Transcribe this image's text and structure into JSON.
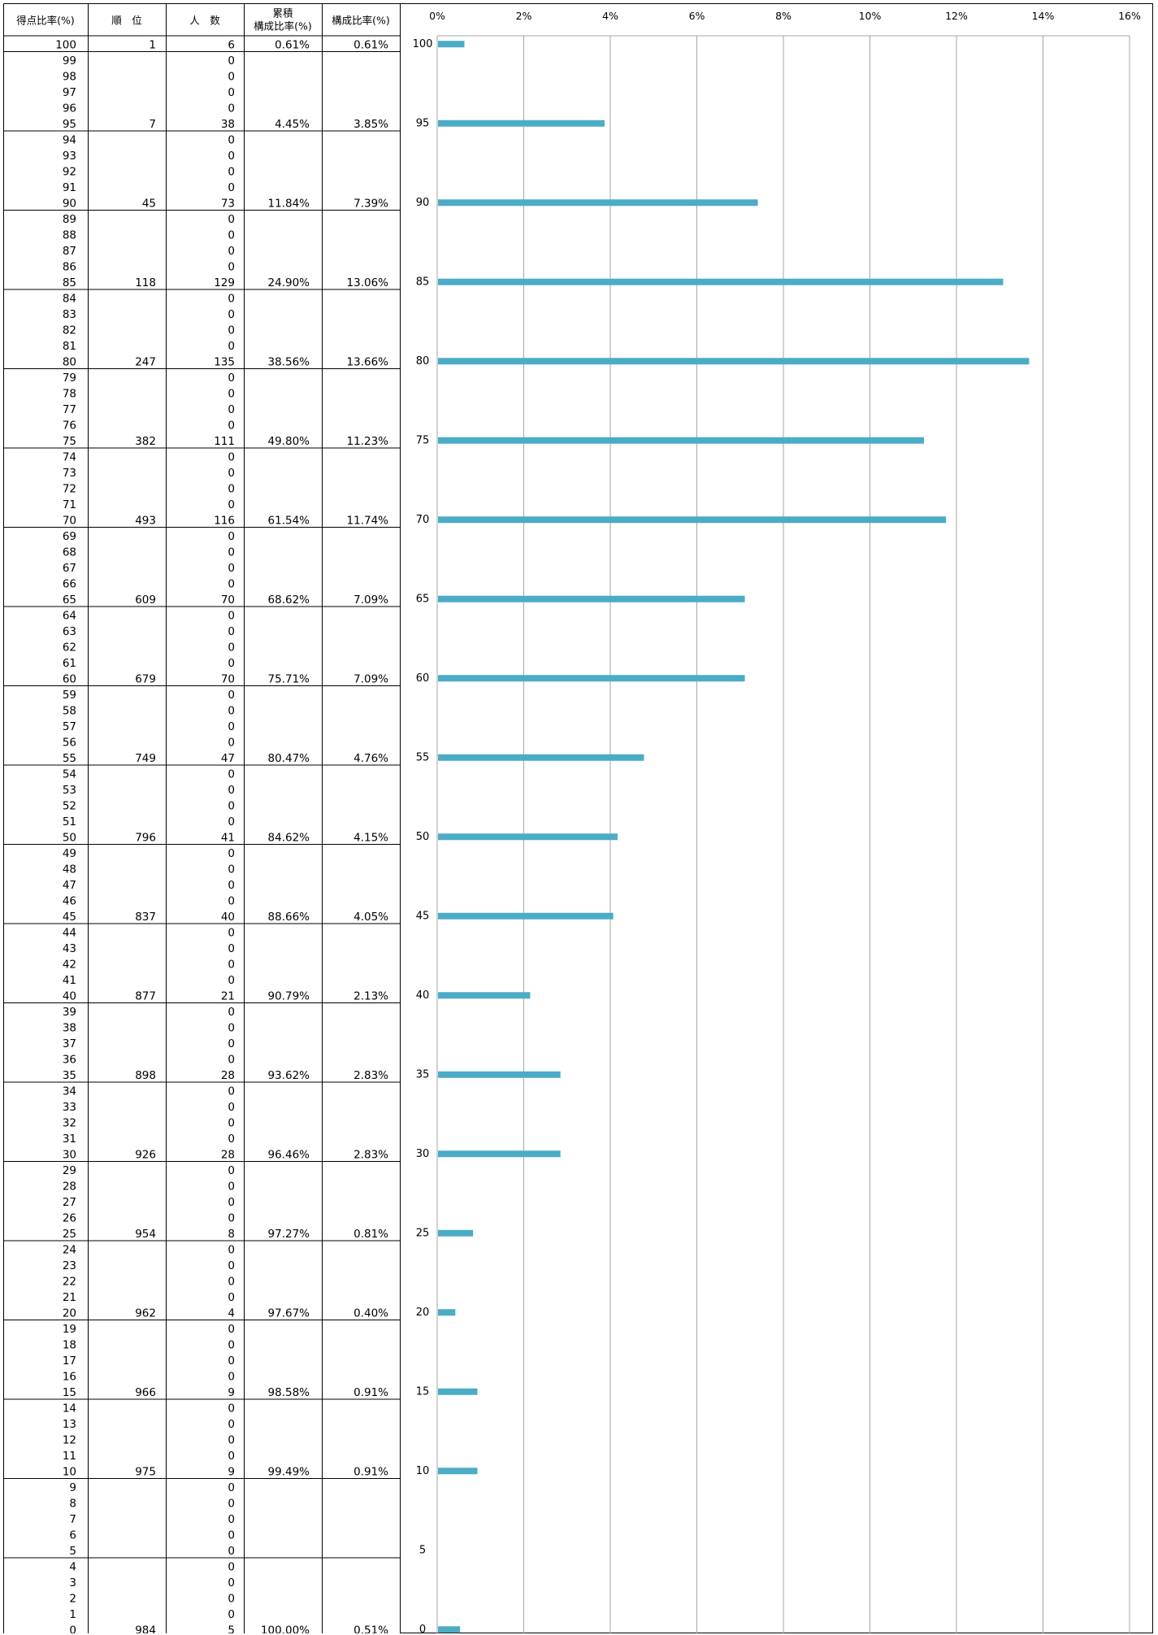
{
  "table": {
    "headers": [
      {
        "lines": [
          "得点比率(%)"
        ]
      },
      {
        "lines": [
          "順　位"
        ]
      },
      {
        "lines": [
          "人　数"
        ]
      },
      {
        "lines": [
          "累積",
          "構成比率(%)"
        ]
      },
      {
        "lines": [
          "構成比率(%)"
        ]
      }
    ],
    "scores": [
      100,
      99,
      98,
      97,
      96,
      95,
      94,
      93,
      92,
      91,
      90,
      89,
      88,
      87,
      86,
      85,
      84,
      83,
      82,
      81,
      80,
      79,
      78,
      77,
      76,
      75,
      74,
      73,
      72,
      71,
      70,
      69,
      68,
      67,
      66,
      65,
      64,
      63,
      62,
      61,
      60,
      59,
      58,
      57,
      56,
      55,
      54,
      53,
      52,
      51,
      50,
      49,
      48,
      47,
      46,
      45,
      44,
      43,
      42,
      41,
      40,
      39,
      38,
      37,
      36,
      35,
      34,
      33,
      32,
      31,
      30,
      29,
      28,
      27,
      26,
      25,
      24,
      23,
      22,
      21,
      20,
      19,
      18,
      17,
      16,
      15,
      14,
      13,
      12,
      11,
      10,
      9,
      8,
      7,
      6,
      5,
      4,
      3,
      2,
      1,
      0
    ],
    "counts": [
      6,
      0,
      0,
      0,
      0,
      38,
      0,
      0,
      0,
      0,
      73,
      0,
      0,
      0,
      0,
      129,
      0,
      0,
      0,
      0,
      135,
      0,
      0,
      0,
      0,
      111,
      0,
      0,
      0,
      0,
      116,
      0,
      0,
      0,
      0,
      70,
      0,
      0,
      0,
      0,
      70,
      0,
      0,
      0,
      0,
      47,
      0,
      0,
      0,
      0,
      41,
      0,
      0,
      0,
      0,
      40,
      0,
      0,
      0,
      0,
      21,
      0,
      0,
      0,
      0,
      28,
      0,
      0,
      0,
      0,
      28,
      0,
      0,
      0,
      0,
      8,
      0,
      0,
      0,
      0,
      4,
      0,
      0,
      0,
      0,
      9,
      0,
      0,
      0,
      0,
      9,
      0,
      0,
      0,
      0,
      0,
      0,
      0,
      0,
      0,
      5
    ],
    "band_summaries": [
      {
        "score": 100,
        "rank": "1",
        "cumulative": "0.61%",
        "ratio": "0.61%"
      },
      {
        "score": 95,
        "rank": "7",
        "cumulative": "4.45%",
        "ratio": "3.85%"
      },
      {
        "score": 90,
        "rank": "45",
        "cumulative": "11.84%",
        "ratio": "7.39%"
      },
      {
        "score": 85,
        "rank": "118",
        "cumulative": "24.90%",
        "ratio": "13.06%"
      },
      {
        "score": 80,
        "rank": "247",
        "cumulative": "38.56%",
        "ratio": "13.66%"
      },
      {
        "score": 75,
        "rank": "382",
        "cumulative": "49.80%",
        "ratio": "11.23%"
      },
      {
        "score": 70,
        "rank": "493",
        "cumulative": "61.54%",
        "ratio": "11.74%"
      },
      {
        "score": 65,
        "rank": "609",
        "cumulative": "68.62%",
        "ratio": "7.09%"
      },
      {
        "score": 60,
        "rank": "679",
        "cumulative": "75.71%",
        "ratio": "7.09%"
      },
      {
        "score": 55,
        "rank": "749",
        "cumulative": "80.47%",
        "ratio": "4.76%"
      },
      {
        "score": 50,
        "rank": "796",
        "cumulative": "84.62%",
        "ratio": "4.15%"
      },
      {
        "score": 45,
        "rank": "837",
        "cumulative": "88.66%",
        "ratio": "4.05%"
      },
      {
        "score": 40,
        "rank": "877",
        "cumulative": "90.79%",
        "ratio": "2.13%"
      },
      {
        "score": 35,
        "rank": "898",
        "cumulative": "93.62%",
        "ratio": "2.83%"
      },
      {
        "score": 30,
        "rank": "926",
        "cumulative": "96.46%",
        "ratio": "2.83%"
      },
      {
        "score": 25,
        "rank": "954",
        "cumulative": "97.27%",
        "ratio": "0.81%"
      },
      {
        "score": 20,
        "rank": "962",
        "cumulative": "97.67%",
        "ratio": "0.40%"
      },
      {
        "score": 15,
        "rank": "966",
        "cumulative": "98.58%",
        "ratio": "0.91%"
      },
      {
        "score": 10,
        "rank": "975",
        "cumulative": "99.49%",
        "ratio": "0.91%"
      },
      {
        "score": 5,
        "rank": "",
        "cumulative": "",
        "ratio": ""
      },
      {
        "score": 0,
        "rank": "984",
        "cumulative": "100.00%",
        "ratio": "0.51%"
      }
    ]
  },
  "chart_data": {
    "type": "bar",
    "orientation": "horizontal",
    "categories": [
      "100",
      "95",
      "90",
      "85",
      "80",
      "75",
      "70",
      "65",
      "60",
      "55",
      "50",
      "45",
      "40",
      "35",
      "30",
      "25",
      "20",
      "15",
      "10",
      "5",
      "0"
    ],
    "values": [
      0.61,
      3.85,
      7.39,
      13.06,
      13.66,
      11.23,
      11.74,
      7.09,
      7.09,
      4.76,
      4.15,
      4.05,
      2.13,
      2.83,
      2.83,
      0.81,
      0.4,
      0.91,
      0.91,
      0,
      0.51
    ],
    "x_ticks": [
      "0%",
      "2%",
      "4%",
      "6%",
      "8%",
      "10%",
      "12%",
      "14%",
      "16%"
    ],
    "xlim": [
      0,
      16
    ],
    "grid": true,
    "bar_color": "#4bacc6",
    "grid_color": "#a6a6a6"
  }
}
